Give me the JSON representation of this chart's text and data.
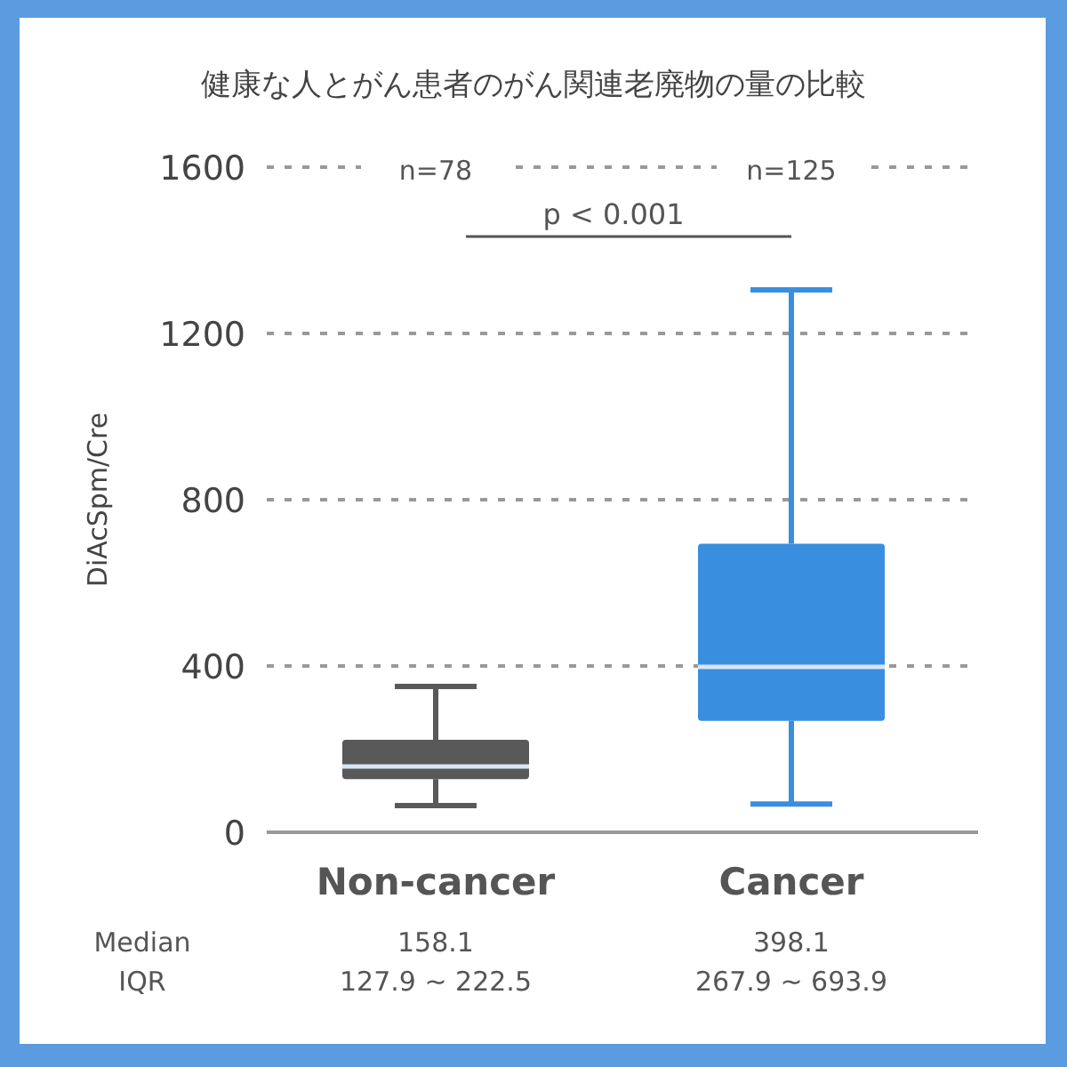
{
  "chart_data": {
    "type": "box",
    "title": "健康な人とがん患者のがん関連老廃物の量の比較",
    "ylabel": "DiAcSpm/Cre",
    "categories": [
      "Non-cancer",
      "Cancer"
    ],
    "boxes": [
      {
        "low": 64,
        "q1": 127.9,
        "median": 158.1,
        "q3": 222.5,
        "high": 351
      },
      {
        "low": 68,
        "q1": 267.9,
        "median": 398.1,
        "q3": 693.9,
        "high": 1305
      }
    ],
    "colors": [
      "#595959",
      "#3a8ee0"
    ],
    "ylim": [
      0,
      1600
    ],
    "yticks": [
      0,
      400,
      800,
      1200,
      1600
    ],
    "grid": "y",
    "annotations": [
      "n=78",
      "n=125",
      "p < 0.001",
      "Median",
      "IQR",
      "158.1",
      "127.9 ~ 222.5",
      "398.1",
      "267.9 ~ 693.9"
    ]
  }
}
